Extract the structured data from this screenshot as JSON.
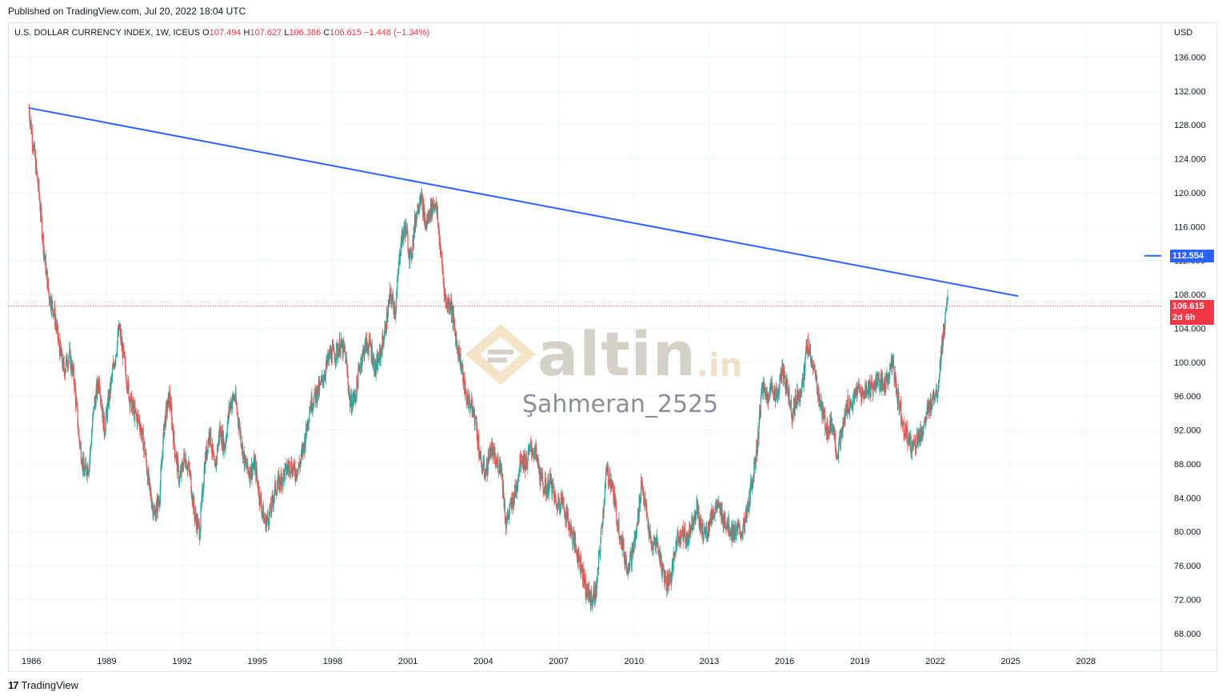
{
  "header": {
    "published": "Published on TradingView.com, Jul 20, 2022 18:04 UTC"
  },
  "legend": {
    "symbol": "U.S. DOLLAR CURRENCY INDEX, 1W, ICEUS",
    "o_label": "O",
    "o_value": "107.494",
    "h_label": "H",
    "h_value": "107.627",
    "l_label": "L",
    "l_value": "106.386",
    "c_label": "C",
    "c_value": "106.615",
    "change": "−1.448 (−1.34%)"
  },
  "axis": {
    "currency": "USD"
  },
  "price_tags": {
    "trendline_value": "112.554",
    "last_price": "106.615",
    "countdown": "2d 6h"
  },
  "watermark": {
    "brand": "altin",
    "suffix": ".in",
    "author": "Şahmeran_2525"
  },
  "footer": {
    "brand": "TradingView"
  },
  "colors": {
    "up": "#26a69a",
    "down": "#ef5350",
    "trendline": "#2962ff",
    "last_price": "#f23645",
    "trendline_tag": "#2962ff"
  },
  "chart_data": {
    "type": "candlestick",
    "x_ticks": [
      "1986",
      "1989",
      "1992",
      "1995",
      "1998",
      "2001",
      "2004",
      "2007",
      "2010",
      "2013",
      "2016",
      "2019",
      "2022",
      "2025",
      "2028"
    ],
    "y_ticks": [
      "68.000",
      "72.000",
      "76.000",
      "80.000",
      "84.000",
      "88.000",
      "92.000",
      "96.000",
      "100.000",
      "104.000",
      "108.000",
      "112.000",
      "116.000",
      "120.000",
      "124.000",
      "128.000",
      "132.000",
      "136.000"
    ],
    "ylim": [
      66,
      140
    ],
    "xlim": [
      1985.1,
      2031.0
    ],
    "grid": true,
    "trendline": {
      "start": [
        1985.9,
        130.0
      ],
      "end": [
        2025.3,
        107.8
      ]
    },
    "last_close": 106.615,
    "series_path": [
      [
        1985.9,
        130.0
      ],
      [
        1986.1,
        125.0
      ],
      [
        1986.3,
        120.0
      ],
      [
        1986.5,
        113.0
      ],
      [
        1986.7,
        108.0
      ],
      [
        1986.9,
        106.0
      ],
      [
        1987.1,
        102.0
      ],
      [
        1987.3,
        99.0
      ],
      [
        1987.5,
        101.0
      ],
      [
        1987.7,
        98.0
      ],
      [
        1987.9,
        91.0
      ],
      [
        1988.1,
        87.0
      ],
      [
        1988.3,
        88.0
      ],
      [
        1988.5,
        95.0
      ],
      [
        1988.7,
        98.0
      ],
      [
        1988.9,
        92.0
      ],
      [
        1989.1,
        96.0
      ],
      [
        1989.3,
        100.0
      ],
      [
        1989.5,
        104.0
      ],
      [
        1989.7,
        100.0
      ],
      [
        1989.9,
        96.0
      ],
      [
        1990.1,
        94.0
      ],
      [
        1990.3,
        93.0
      ],
      [
        1990.5,
        90.0
      ],
      [
        1990.7,
        85.0
      ],
      [
        1990.9,
        82.0
      ],
      [
        1991.1,
        84.0
      ],
      [
        1991.3,
        93.0
      ],
      [
        1991.5,
        96.0
      ],
      [
        1991.7,
        90.0
      ],
      [
        1991.9,
        86.0
      ],
      [
        1992.1,
        89.0
      ],
      [
        1992.3,
        87.0
      ],
      [
        1992.5,
        82.0
      ],
      [
        1992.7,
        80.0
      ],
      [
        1992.9,
        88.0
      ],
      [
        1993.1,
        92.0
      ],
      [
        1993.3,
        87.0
      ],
      [
        1993.5,
        92.0
      ],
      [
        1993.7,
        90.0
      ],
      [
        1993.9,
        95.0
      ],
      [
        1994.1,
        96.0
      ],
      [
        1994.3,
        92.0
      ],
      [
        1994.5,
        88.0
      ],
      [
        1994.7,
        87.0
      ],
      [
        1994.9,
        88.0
      ],
      [
        1995.1,
        84.0
      ],
      [
        1995.3,
        81.0
      ],
      [
        1995.5,
        82.0
      ],
      [
        1995.7,
        85.0
      ],
      [
        1995.9,
        86.0
      ],
      [
        1996.1,
        87.0
      ],
      [
        1996.3,
        88.0
      ],
      [
        1996.5,
        87.0
      ],
      [
        1996.7,
        88.0
      ],
      [
        1996.9,
        91.0
      ],
      [
        1997.1,
        95.0
      ],
      [
        1997.3,
        96.0
      ],
      [
        1997.5,
        97.0
      ],
      [
        1997.7,
        99.0
      ],
      [
        1997.9,
        101.0
      ],
      [
        1998.1,
        101.0
      ],
      [
        1998.3,
        102.0
      ],
      [
        1998.5,
        101.0
      ],
      [
        1998.7,
        95.0
      ],
      [
        1998.9,
        96.0
      ],
      [
        1999.1,
        100.0
      ],
      [
        1999.3,
        102.0
      ],
      [
        1999.5,
        102.0
      ],
      [
        1999.7,
        99.0
      ],
      [
        1999.9,
        101.0
      ],
      [
        2000.1,
        104.0
      ],
      [
        2000.3,
        108.0
      ],
      [
        2000.5,
        106.0
      ],
      [
        2000.7,
        114.0
      ],
      [
        2000.9,
        116.0
      ],
      [
        2001.1,
        112.0
      ],
      [
        2001.3,
        117.0
      ],
      [
        2001.5,
        120.0
      ],
      [
        2001.7,
        116.0
      ],
      [
        2001.9,
        118.0
      ],
      [
        2002.1,
        119.0
      ],
      [
        2002.3,
        113.0
      ],
      [
        2002.5,
        107.0
      ],
      [
        2002.7,
        107.0
      ],
      [
        2002.9,
        103.0
      ],
      [
        2003.1,
        100.0
      ],
      [
        2003.3,
        96.0
      ],
      [
        2003.5,
        95.0
      ],
      [
        2003.7,
        93.0
      ],
      [
        2003.9,
        88.0
      ],
      [
        2004.1,
        87.0
      ],
      [
        2004.3,
        90.0
      ],
      [
        2004.5,
        88.0
      ],
      [
        2004.7,
        88.0
      ],
      [
        2004.9,
        81.0
      ],
      [
        2005.1,
        83.0
      ],
      [
        2005.3,
        85.0
      ],
      [
        2005.5,
        89.0
      ],
      [
        2005.7,
        88.0
      ],
      [
        2005.9,
        90.0
      ],
      [
        2006.1,
        89.0
      ],
      [
        2006.3,
        86.0
      ],
      [
        2006.5,
        85.0
      ],
      [
        2006.7,
        86.0
      ],
      [
        2006.9,
        83.0
      ],
      [
        2007.1,
        84.0
      ],
      [
        2007.3,
        82.0
      ],
      [
        2007.5,
        80.0
      ],
      [
        2007.7,
        78.0
      ],
      [
        2007.9,
        76.0
      ],
      [
        2008.1,
        73.0
      ],
      [
        2008.3,
        72.0
      ],
      [
        2008.5,
        73.0
      ],
      [
        2008.7,
        80.0
      ],
      [
        2008.9,
        87.0
      ],
      [
        2009.1,
        86.0
      ],
      [
        2009.3,
        82.0
      ],
      [
        2009.5,
        79.0
      ],
      [
        2009.7,
        76.0
      ],
      [
        2009.9,
        77.0
      ],
      [
        2010.1,
        80.0
      ],
      [
        2010.3,
        86.0
      ],
      [
        2010.5,
        82.0
      ],
      [
        2010.7,
        78.0
      ],
      [
        2010.9,
        79.0
      ],
      [
        2011.1,
        76.0
      ],
      [
        2011.3,
        74.0
      ],
      [
        2011.5,
        75.0
      ],
      [
        2011.7,
        79.0
      ],
      [
        2011.9,
        80.0
      ],
      [
        2012.1,
        79.0
      ],
      [
        2012.3,
        81.0
      ],
      [
        2012.5,
        83.0
      ],
      [
        2012.7,
        80.0
      ],
      [
        2012.9,
        80.0
      ],
      [
        2013.1,
        82.0
      ],
      [
        2013.3,
        83.0
      ],
      [
        2013.5,
        82.0
      ],
      [
        2013.7,
        81.0
      ],
      [
        2013.9,
        80.0
      ],
      [
        2014.1,
        80.0
      ],
      [
        2014.3,
        80.0
      ],
      [
        2014.5,
        82.0
      ],
      [
        2014.7,
        86.0
      ],
      [
        2014.9,
        90.0
      ],
      [
        2015.1,
        97.0
      ],
      [
        2015.3,
        96.0
      ],
      [
        2015.5,
        97.0
      ],
      [
        2015.7,
        96.0
      ],
      [
        2015.9,
        99.0
      ],
      [
        2016.1,
        97.0
      ],
      [
        2016.3,
        94.0
      ],
      [
        2016.5,
        96.0
      ],
      [
        2016.7,
        97.0
      ],
      [
        2016.9,
        102.0
      ],
      [
        2017.1,
        100.0
      ],
      [
        2017.3,
        97.0
      ],
      [
        2017.5,
        94.0
      ],
      [
        2017.7,
        92.0
      ],
      [
        2017.9,
        93.0
      ],
      [
        2018.1,
        89.0
      ],
      [
        2018.3,
        92.0
      ],
      [
        2018.5,
        95.0
      ],
      [
        2018.7,
        95.0
      ],
      [
        2018.9,
        97.0
      ],
      [
        2019.1,
        96.0
      ],
      [
        2019.3,
        97.0
      ],
      [
        2019.5,
        97.0
      ],
      [
        2019.7,
        98.0
      ],
      [
        2019.9,
        97.0
      ],
      [
        2020.1,
        98.0
      ],
      [
        2020.3,
        100.0
      ],
      [
        2020.5,
        96.0
      ],
      [
        2020.7,
        93.0
      ],
      [
        2020.9,
        91.0
      ],
      [
        2021.1,
        90.0
      ],
      [
        2021.3,
        91.0
      ],
      [
        2021.5,
        92.0
      ],
      [
        2021.7,
        94.0
      ],
      [
        2021.9,
        96.0
      ],
      [
        2022.1,
        97.0
      ],
      [
        2022.3,
        103.0
      ],
      [
        2022.5,
        107.0
      ]
    ]
  }
}
